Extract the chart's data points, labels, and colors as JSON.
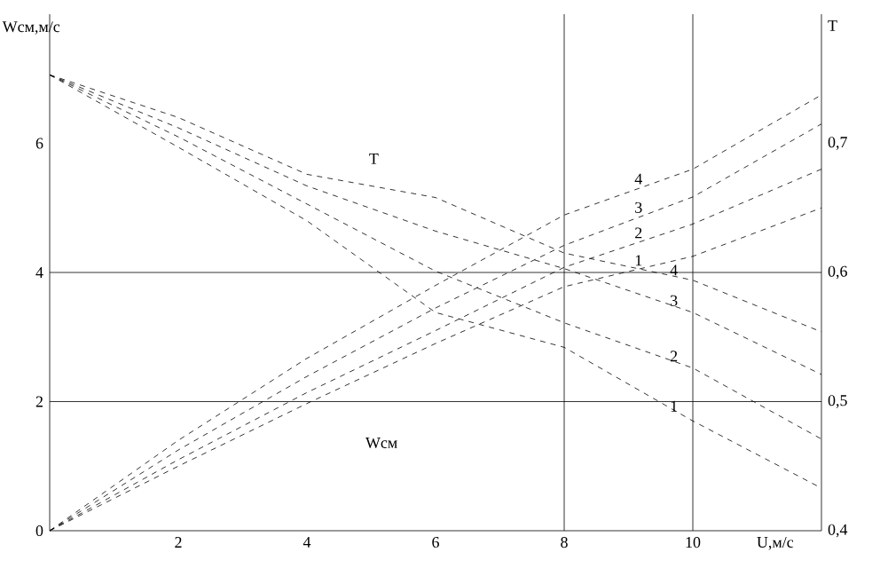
{
  "chart_data": {
    "type": "line",
    "xlabel": "U,м/с",
    "ylabel": "Wсм,м/с",
    "y2label": "T",
    "x": [
      0,
      2,
      4,
      6,
      8,
      10,
      12
    ],
    "xlim": [
      0,
      12
    ],
    "xticks": [
      2,
      4,
      6,
      8,
      10
    ],
    "ylim": [
      0,
      8
    ],
    "yticks": [
      0,
      2,
      4,
      6
    ],
    "y2lim": [
      0.4,
      0.8
    ],
    "y2ticks": [
      {
        "value": 0.4,
        "label": "0,4"
      },
      {
        "value": 0.5,
        "label": "0,5"
      },
      {
        "value": 0.6,
        "label": "0,6"
      },
      {
        "value": 0.7,
        "label": "0,7"
      }
    ],
    "line_style": "dashed",
    "marker": "none",
    "series": [
      {
        "name": "4",
        "color": "#000000",
        "values": [
          0,
          1.4,
          2.67,
          3.8,
          4.89,
          5.6,
          6.75
        ]
      },
      {
        "name": "3",
        "color": "#000000",
        "values": [
          0,
          1.25,
          2.39,
          3.45,
          4.42,
          5.17,
          6.3
        ]
      },
      {
        "name": "2",
        "color": "#000000",
        "values": [
          0,
          1.1,
          2.14,
          3.1,
          4.08,
          4.75,
          5.6
        ]
      },
      {
        "name": "1",
        "color": "#000000",
        "values": [
          0,
          1.0,
          1.97,
          2.9,
          3.78,
          4.25,
          5.0
        ]
      },
      {
        "name": "4",
        "color": "#000000",
        "axis": "y2",
        "values": [
          0.753,
          0.72,
          0.676,
          0.658,
          0.615,
          0.594,
          0.554
        ]
      },
      {
        "name": "3",
        "color": "#000000",
        "axis": "y2",
        "values": [
          0.753,
          0.712,
          0.667,
          0.632,
          0.603,
          0.569,
          0.521
        ]
      },
      {
        "name": "2",
        "color": "#000000",
        "axis": "y2",
        "values": [
          0.753,
          0.705,
          0.653,
          0.601,
          0.561,
          0.526,
          0.471
        ]
      },
      {
        "name": "1",
        "color": "#000000",
        "axis": "y2",
        "values": [
          0.753,
          0.697,
          0.64,
          0.569,
          0.542,
          0.485,
          0.433
        ]
      }
    ],
    "ref_lines": [
      {
        "axis": "y",
        "value": 2
      },
      {
        "axis": "y",
        "value": 4
      },
      {
        "axis": "x",
        "value": 8
      },
      {
        "axis": "x",
        "value": 10
      }
    ],
    "annotations": [
      "T",
      "Wсм"
    ]
  }
}
